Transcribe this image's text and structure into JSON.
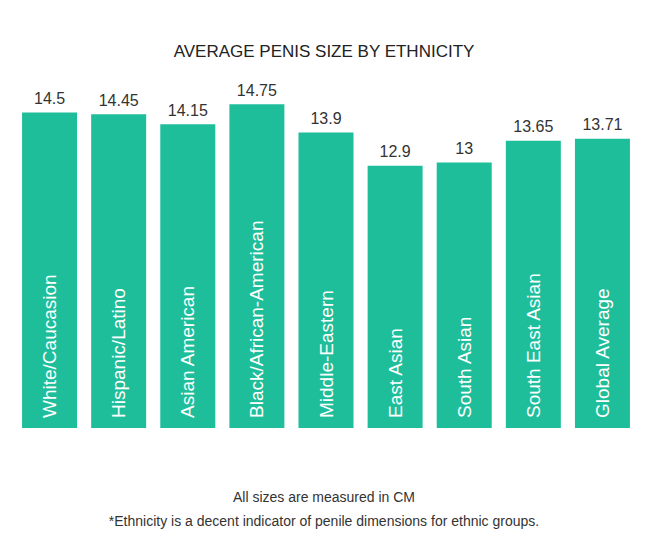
{
  "chart_data": {
    "type": "bar",
    "title": "AVERAGE PENIS SIZE BY ETHNICITY",
    "categories": [
      "White/Caucasion",
      "Hispanic/Latino",
      "Asian American",
      "Black/African-American",
      "Middle-Eastern",
      "East Asian",
      "South Asian",
      "South East Asian",
      "Global Average"
    ],
    "values": [
      14.5,
      14.45,
      14.15,
      14.75,
      13.9,
      12.9,
      13,
      13.65,
      13.71
    ],
    "color": "#1fbe9b",
    "ylim": [
      5,
      15
    ],
    "yticks": [
      5,
      10,
      15
    ],
    "grid": false,
    "data_labels": true,
    "tick_labels": false,
    "annotations": [
      "All sizes are measured in CM",
      "*Ethnicity is a decent indicator of penile dimensions for ethnic groups."
    ]
  }
}
